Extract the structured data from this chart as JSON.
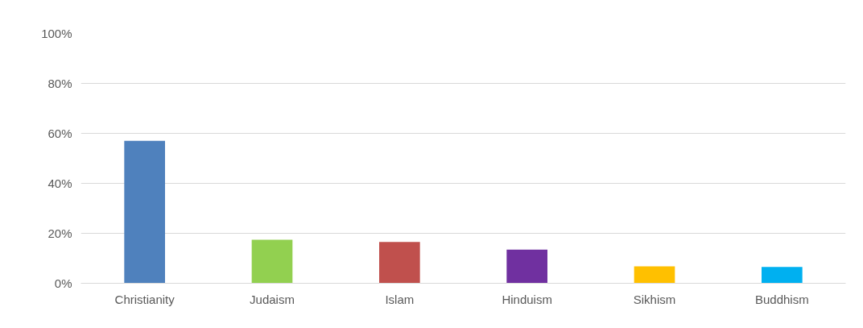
{
  "chart_data": {
    "type": "bar",
    "categories": [
      "Christianity",
      "Judaism",
      "Islam",
      "Hinduism",
      "Sikhism",
      "Buddhism"
    ],
    "values": [
      57,
      17.4,
      16.5,
      13.5,
      6.8,
      6.5
    ],
    "colors": [
      "#4f81bd",
      "#92d050",
      "#c0504d",
      "#7030a0",
      "#ffc000",
      "#00b0f0"
    ],
    "ylim": [
      0,
      100
    ],
    "yticks": [
      {
        "value": 0,
        "label": "0%"
      },
      {
        "value": 20,
        "label": "20%"
      },
      {
        "value": 40,
        "label": "40%"
      },
      {
        "value": 60,
        "label": "60%"
      },
      {
        "value": 80,
        "label": "80%"
      },
      {
        "value": 100,
        "label": "100%"
      }
    ],
    "grid": "y"
  }
}
